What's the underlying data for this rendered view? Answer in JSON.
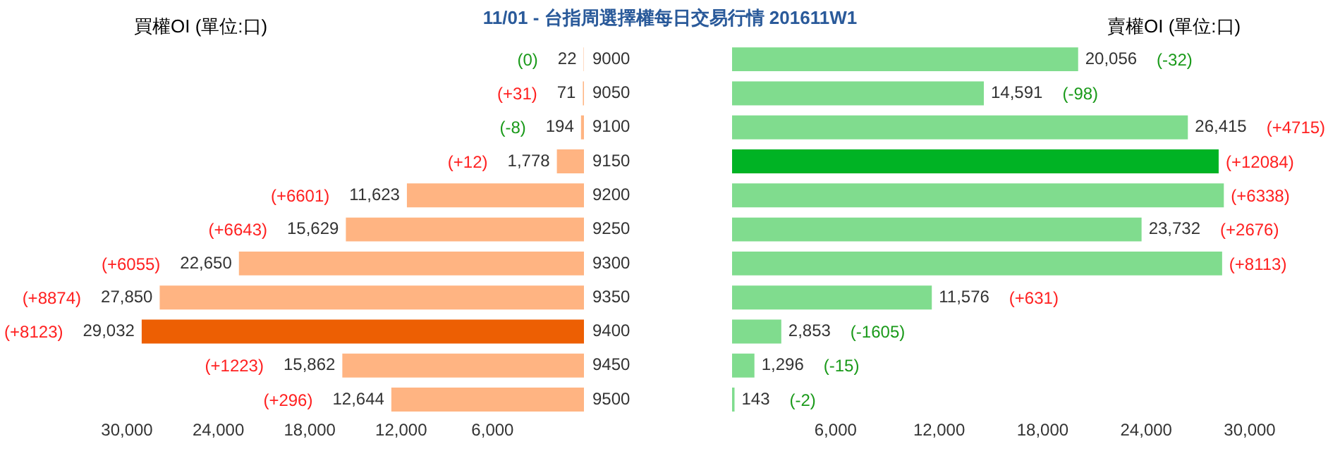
{
  "chart_data": [
    {
      "type": "bar",
      "orientation": "horizontal",
      "title": "11/01 - 台指周選擇權每日交易行情 201611W1",
      "xlabel": "買權OI (單位:口)",
      "categories": [
        "9000",
        "9050",
        "9100",
        "9150",
        "9200",
        "9250",
        "9300",
        "9350",
        "9400",
        "9450",
        "9500"
      ],
      "values": [
        22,
        71,
        194,
        1778,
        11623,
        15629,
        22650,
        27850,
        29032,
        15862,
        12644
      ],
      "colors": [
        "#ffb482",
        "#ffb482",
        "#ffb482",
        "#ffb482",
        "#ffb482",
        "#ffb482",
        "#ffb482",
        "#ffb482",
        "#ed5f03",
        "#ffb482",
        "#ffb482"
      ],
      "value_labels": [
        "22",
        "71",
        "194",
        "1,778",
        "11,623",
        "15,629",
        "22,650",
        "27,850",
        "29,032",
        "15,862",
        "12,644"
      ],
      "annotations": [
        "(0)",
        "(+31)",
        "(-8)",
        "(+12)",
        "(+6601)",
        "(+6643)",
        "(+6055)",
        "(+8874)",
        "(+8123)",
        "(+1223)",
        "(+296)"
      ],
      "xlim": [
        30000,
        0
      ],
      "xticks": [
        {
          "value": 30000,
          "label": "30,000"
        },
        {
          "value": 24000,
          "label": "24,000"
        },
        {
          "value": 18000,
          "label": "18,000"
        },
        {
          "value": 12000,
          "label": "12,000"
        },
        {
          "value": 6000,
          "label": "6,000"
        }
      ],
      "grid": false,
      "legend": false
    },
    {
      "type": "bar",
      "orientation": "horizontal",
      "xlabel": "賣權OI (單位:口)",
      "categories": [
        "9000",
        "9050",
        "9100",
        "9150",
        "9200",
        "9250",
        "9300",
        "9350",
        "9400",
        "9450",
        "9500"
      ],
      "values": [
        20056,
        14591,
        26415,
        28200,
        28500,
        23732,
        28400,
        11576,
        2853,
        1296,
        143
      ],
      "colors": [
        "#80dc8e",
        "#80dc8e",
        "#80dc8e",
        "#00b324",
        "#80dc8e",
        "#80dc8e",
        "#80dc8e",
        "#80dc8e",
        "#80dc8e",
        "#80dc8e",
        "#80dc8e"
      ],
      "value_labels": [
        "20,056",
        "14,591",
        "26,415",
        null,
        null,
        "23,732",
        null,
        "11,576",
        "2,853",
        "1,296",
        "143"
      ],
      "annotations": [
        "(-32)",
        "(-98)",
        "(+4715)",
        "(+12084)",
        "(+6338)",
        "(+2676)",
        "(+8113)",
        "(+631)",
        "(-1605)",
        "(-15)",
        "(-2)"
      ],
      "xlim": [
        0,
        30000
      ],
      "xticks": [
        {
          "value": 6000,
          "label": "6,000"
        },
        {
          "value": 12000,
          "label": "12,000"
        },
        {
          "value": 18000,
          "label": "18,000"
        },
        {
          "value": 24000,
          "label": "24,000"
        },
        {
          "value": 30000,
          "label": "30,000"
        }
      ],
      "tick_labels": "x",
      "grid": false,
      "legend": false
    }
  ]
}
